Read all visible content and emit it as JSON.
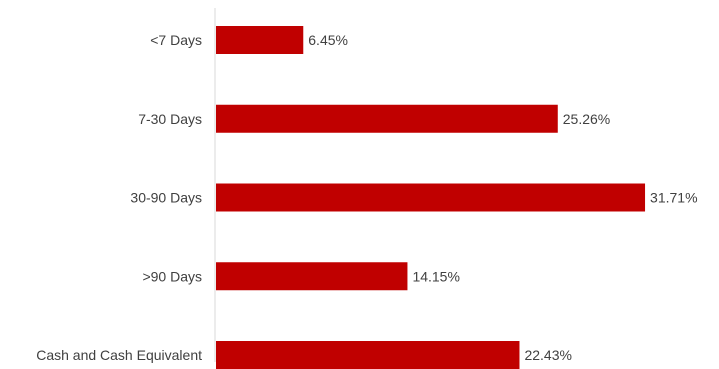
{
  "chart_data": {
    "type": "bar",
    "orientation": "horizontal",
    "categories": [
      "<7 Days",
      "7-30 Days",
      "30-90 Days",
      ">90 Days",
      "Cash and Cash Equivalent"
    ],
    "values": [
      6.45,
      25.26,
      31.71,
      14.15,
      22.43
    ],
    "value_labels": [
      "6.45%",
      "25.26%",
      "31.71%",
      "14.15%",
      "22.43%"
    ],
    "xlim": [
      0,
      35
    ],
    "grid": false,
    "legend": "none",
    "colors": {
      "bar": "#c00000",
      "axis": "#d9d9d9",
      "text": "#404040"
    }
  }
}
